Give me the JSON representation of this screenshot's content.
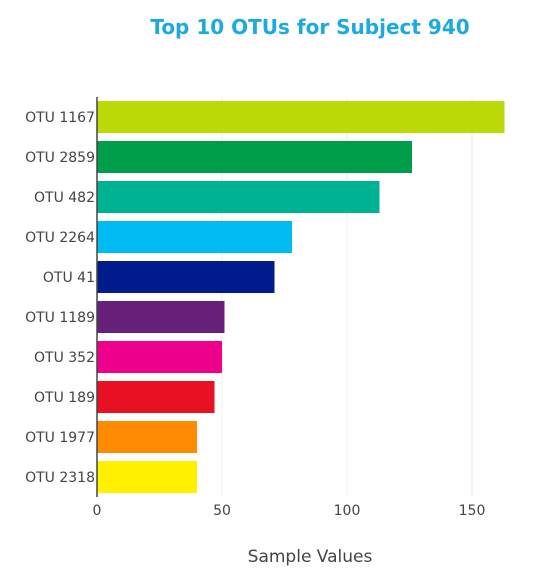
{
  "chart_data": {
    "type": "bar",
    "orientation": "horizontal",
    "title": "Top 10 OTUs for Subject 940",
    "xlabel": "Sample Values",
    "ylabel": "",
    "xlim": [
      0,
      170
    ],
    "x_ticks": [
      0,
      50,
      100,
      150
    ],
    "categories": [
      "OTU 1167",
      "OTU 2859",
      "OTU 482",
      "OTU 2264",
      "OTU 41",
      "OTU 1189",
      "OTU 352",
      "OTU 189",
      "OTU 1977",
      "OTU 2318"
    ],
    "values": [
      163,
      126,
      113,
      78,
      71,
      51,
      50,
      47,
      40,
      40
    ],
    "colors": [
      "#bcd908",
      "#009e4a",
      "#00b294",
      "#00bcf2",
      "#001c8c",
      "#68217a",
      "#ec008c",
      "#e81123",
      "#ff8c00",
      "#fff100"
    ],
    "grid": true,
    "title_color": "#1ba9e4"
  }
}
